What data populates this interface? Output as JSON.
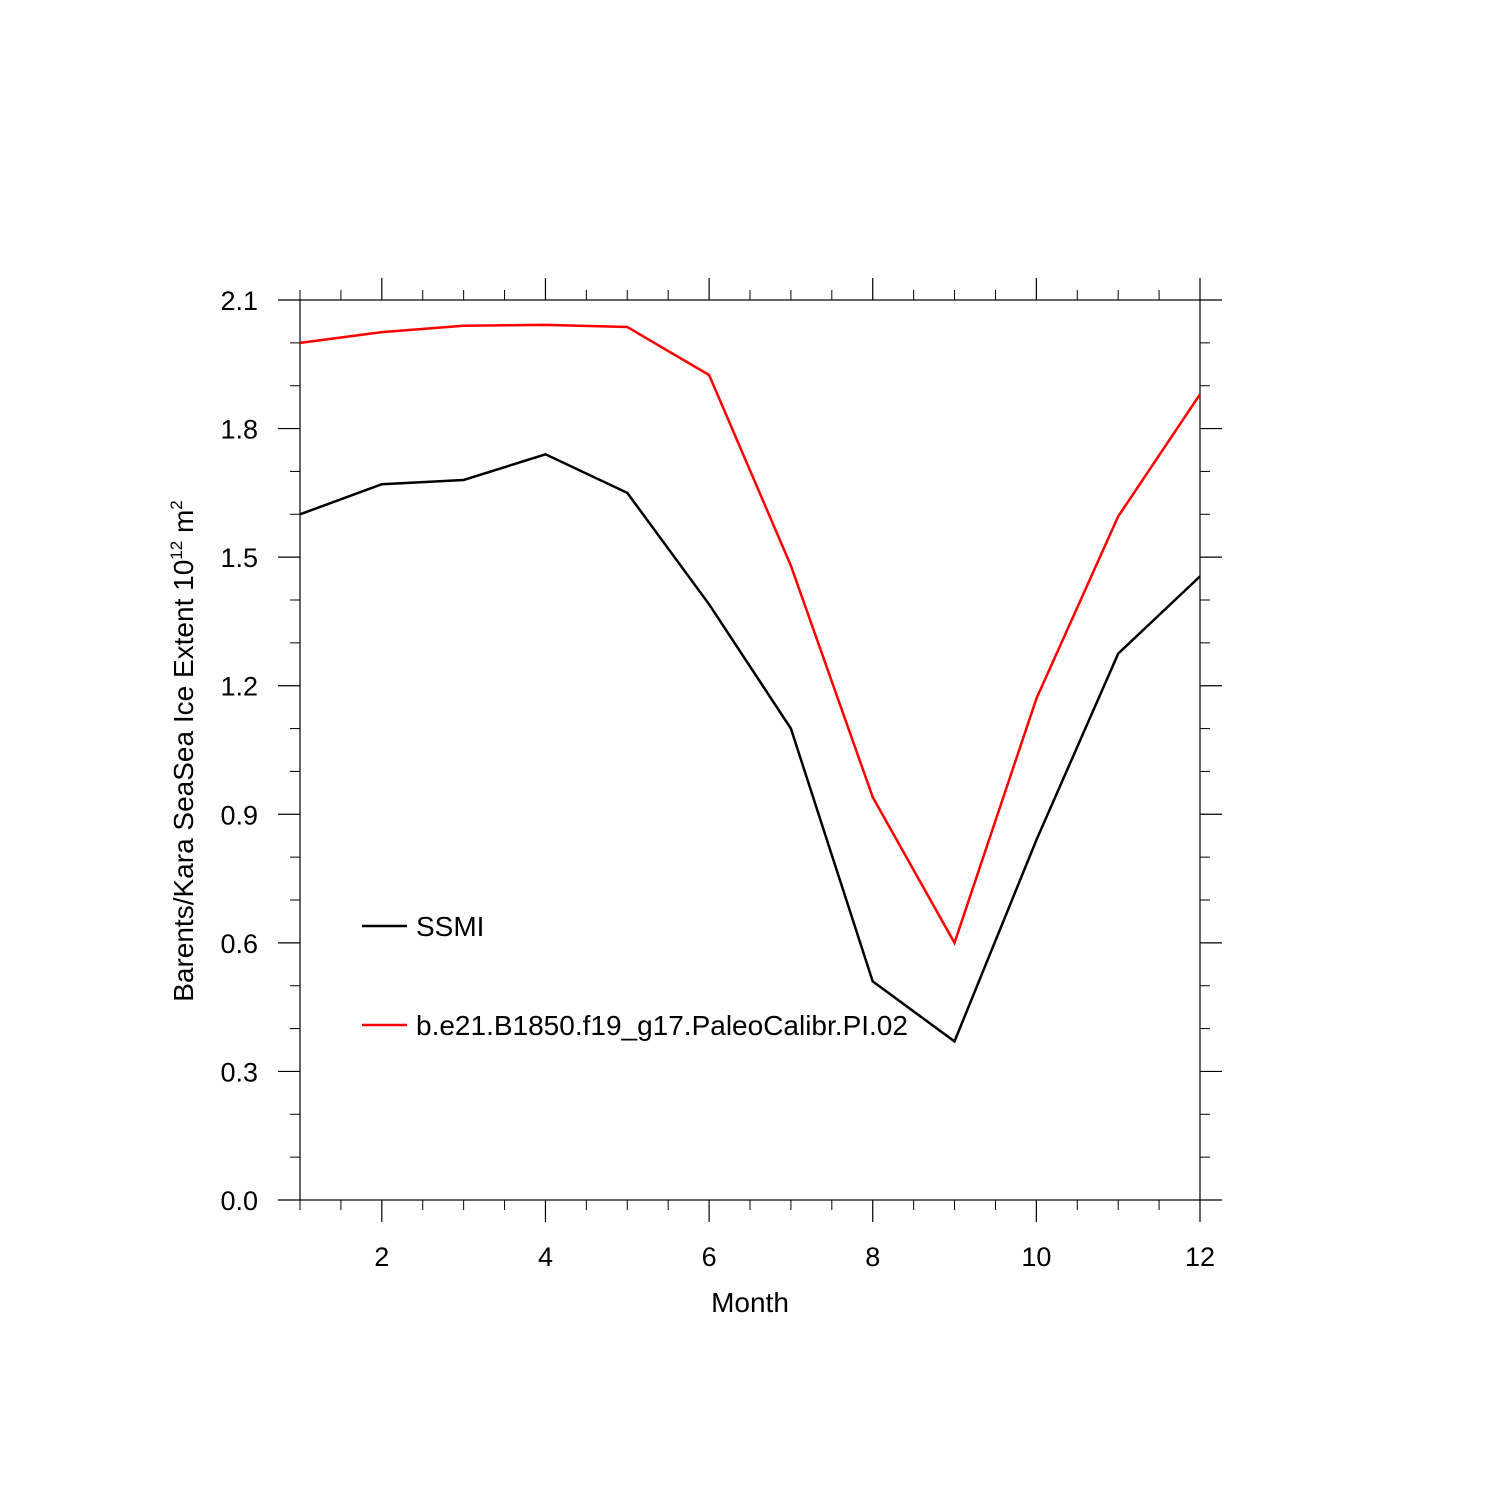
{
  "chart_data": {
    "type": "line",
    "xlabel": "Month",
    "ylabel": {
      "text": "Barents/Kara SeaSea Ice Extent 10",
      "exponent": "12",
      "unit": " m",
      "unit_exponent": "2"
    },
    "xlim": [
      1,
      12
    ],
    "ylim": [
      0.0,
      2.1
    ],
    "x_major_ticks": [
      2,
      4,
      6,
      8,
      10,
      12
    ],
    "x_tick_labels": [
      "2",
      "4",
      "6",
      "8",
      "10",
      "12"
    ],
    "x_minor_step": 0.5,
    "y_major_ticks": [
      0.0,
      0.3,
      0.6,
      0.9,
      1.2,
      1.5,
      1.8,
      2.1
    ],
    "y_tick_labels": [
      "0.0",
      "0.3",
      "0.6",
      "0.9",
      "1.2",
      "1.5",
      "1.8",
      "2.1"
    ],
    "y_minor_step": 0.1,
    "grid": false,
    "legend_position": "lower-left",
    "x": [
      1,
      2,
      3,
      4,
      5,
      6,
      7,
      8,
      9,
      10,
      11,
      12
    ],
    "series": [
      {
        "name": "SSMI",
        "color": "#000000",
        "values": [
          1.6,
          1.67,
          1.68,
          1.74,
          1.65,
          1.39,
          1.1,
          0.51,
          0.37,
          0.84,
          1.275,
          1.455
        ]
      },
      {
        "name": "b.e21.B1850.f19_g17.PaleoCalibr.PI.02",
        "color": "#ff0000",
        "values": [
          2.0,
          2.025,
          2.04,
          2.042,
          2.037,
          1.925,
          1.48,
          0.94,
          0.6,
          1.17,
          1.595,
          1.88
        ]
      }
    ]
  }
}
